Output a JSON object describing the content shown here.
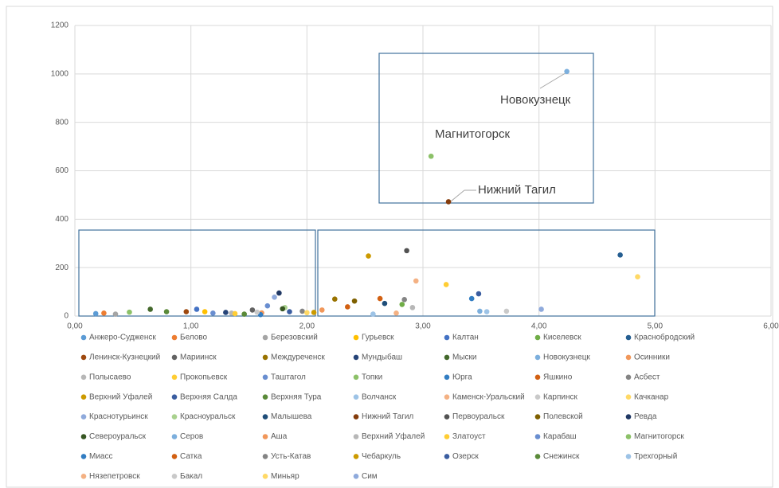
{
  "chart_data": {
    "type": "scatter",
    "xlim": [
      0,
      6
    ],
    "ylim": [
      0,
      1200
    ],
    "xticks": [
      {
        "value": 0,
        "label": "0,00"
      },
      {
        "value": 1,
        "label": "1,00"
      },
      {
        "value": 2,
        "label": "2,00"
      },
      {
        "value": 3,
        "label": "3,00"
      },
      {
        "value": 4,
        "label": "4,00"
      },
      {
        "value": 5,
        "label": "5,00"
      },
      {
        "value": 6,
        "label": "6,00"
      }
    ],
    "yticks": [
      0,
      200,
      400,
      600,
      800,
      1000,
      1200
    ],
    "grid": true,
    "legend": "bottom",
    "annotations": [
      {
        "text": "Новокузнецк"
      },
      {
        "text": "Магнитогорск"
      },
      {
        "text": "Нижний Тагил"
      }
    ],
    "series": [
      {
        "name": "Анжеро-Судженск",
        "color": "#5b9bd5",
        "x": [
          0.18
        ],
        "values": [
          10
        ]
      },
      {
        "name": "Белово",
        "color": "#ed7d31",
        "x": [
          0.25
        ],
        "values": [
          12
        ]
      },
      {
        "name": "Березовский",
        "color": "#a5a5a5",
        "x": [
          0.35
        ],
        "values": [
          8
        ]
      },
      {
        "name": "Гурьевск",
        "color": "#ffc000",
        "x": [
          1.12
        ],
        "values": [
          18
        ]
      },
      {
        "name": "Калтан",
        "color": "#4472c4",
        "x": [
          1.05
        ],
        "values": [
          28
        ]
      },
      {
        "name": "Киселевск",
        "color": "#70ad47",
        "x": [
          2.82
        ],
        "values": [
          48
        ]
      },
      {
        "name": "Краснобродский",
        "color": "#255e91",
        "x": [
          4.7
        ],
        "values": [
          252
        ]
      },
      {
        "name": "Ленинск-Кузнецкий",
        "color": "#9e480e",
        "x": [
          0.96
        ],
        "values": [
          18
        ]
      },
      {
        "name": "Мариинск",
        "color": "#636363",
        "x": [
          1.53
        ],
        "values": [
          25
        ]
      },
      {
        "name": "Междуреченск",
        "color": "#997300",
        "x": [
          2.24
        ],
        "values": [
          70
        ]
      },
      {
        "name": "Мундыбаш",
        "color": "#264478",
        "x": [
          1.3
        ],
        "values": [
          15
        ]
      },
      {
        "name": "Мыски",
        "color": "#43682b",
        "x": [
          0.65
        ],
        "values": [
          28
        ]
      },
      {
        "name": "Новокузнецк",
        "color": "#7cafdd",
        "x": [
          4.24
        ],
        "values": [
          1010
        ]
      },
      {
        "name": "Осинники",
        "color": "#f1975a",
        "x": [
          1.61
        ],
        "values": [
          13
        ]
      },
      {
        "name": "Полысаево",
        "color": "#b7b7b7",
        "x": [
          1.35
        ],
        "values": [
          12
        ]
      },
      {
        "name": "Прокопьевск",
        "color": "#ffcd33",
        "x": [
          1.38
        ],
        "values": [
          10
        ]
      },
      {
        "name": "Таштагол",
        "color": "#698ed0",
        "x": [
          1.66
        ],
        "values": [
          42
        ]
      },
      {
        "name": "Топки",
        "color": "#8cc168",
        "x": [
          0.47
        ],
        "values": [
          16
        ]
      },
      {
        "name": "Юрга",
        "color": "#327dc2",
        "x": [
          3.42
        ],
        "values": [
          72
        ]
      },
      {
        "name": "Яшкино",
        "color": "#d26012",
        "x": [
          2.63
        ],
        "values": [
          72
        ]
      },
      {
        "name": "Асбест",
        "color": "#848484",
        "x": [
          1.96
        ],
        "values": [
          20
        ]
      },
      {
        "name": "Верхний Уфалей",
        "color": "#cc9a00",
        "x": [
          2.53
        ],
        "values": [
          248
        ]
      },
      {
        "name": "Верхняя Салда",
        "color": "#3a5da0",
        "x": [
          3.48
        ],
        "values": [
          92
        ]
      },
      {
        "name": "Верхняя Тура",
        "color": "#5a8a39",
        "x": [
          0.79
        ],
        "values": [
          18
        ]
      },
      {
        "name": "Волчанск",
        "color": "#9dc3e6",
        "x": [
          2.57
        ],
        "values": [
          8
        ]
      },
      {
        "name": "Каменск-Уральский",
        "color": "#f4b183",
        "x": [
          2.94
        ],
        "values": [
          145
        ]
      },
      {
        "name": "Карпинск",
        "color": "#c9c9c9",
        "x": [
          3.72
        ],
        "values": [
          20
        ]
      },
      {
        "name": "Качканар",
        "color": "#ffd966",
        "x": [
          4.85
        ],
        "values": [
          162
        ]
      },
      {
        "name": "Краснотурьинск",
        "color": "#8faadc",
        "x": [
          1.72
        ],
        "values": [
          78
        ]
      },
      {
        "name": "Красноуральск",
        "color": "#a9d18e",
        "x": [
          1.81
        ],
        "values": [
          35
        ]
      },
      {
        "name": "Малышева",
        "color": "#1f4e79",
        "x": [
          2.67
        ],
        "values": [
          52
        ]
      },
      {
        "name": "Нижний Тагил",
        "color": "#843c0c",
        "x": [
          3.22
        ],
        "values": [
          472
        ]
      },
      {
        "name": "Первоуральск",
        "color": "#525252",
        "x": [
          2.86
        ],
        "values": [
          270
        ]
      },
      {
        "name": "Полевской",
        "color": "#7f6000",
        "x": [
          2.41
        ],
        "values": [
          62
        ]
      },
      {
        "name": "Ревда",
        "color": "#203864",
        "x": [
          1.76
        ],
        "values": [
          95
        ]
      },
      {
        "name": "Североуральск",
        "color": "#375623",
        "x": [
          1.79
        ],
        "values": [
          30
        ]
      },
      {
        "name": "Серов",
        "color": "#7cafdd",
        "x": [
          3.49
        ],
        "values": [
          20
        ]
      },
      {
        "name": "Аша",
        "color": "#f1975a",
        "x": [
          2.13
        ],
        "values": [
          25
        ]
      },
      {
        "name": "Верхний Уфалей",
        "color": "#b7b7b7",
        "x": [
          2.91
        ],
        "values": [
          35
        ]
      },
      {
        "name": "Златоуст",
        "color": "#ffcd33",
        "x": [
          3.2
        ],
        "values": [
          130
        ]
      },
      {
        "name": "Карабаш",
        "color": "#698ed0",
        "x": [
          1.19
        ],
        "values": [
          12
        ]
      },
      {
        "name": "Магнитогорск",
        "color": "#8cc168",
        "x": [
          3.07
        ],
        "values": [
          660
        ]
      },
      {
        "name": "Миасс",
        "color": "#327dc2",
        "x": [
          1.6
        ],
        "values": [
          6
        ]
      },
      {
        "name": "Сатка",
        "color": "#d26012",
        "x": [
          2.35
        ],
        "values": [
          38
        ]
      },
      {
        "name": "Усть-Катав",
        "color": "#848484",
        "x": [
          2.84
        ],
        "values": [
          68
        ]
      },
      {
        "name": "Чебаркуль",
        "color": "#cc9a00",
        "x": [
          2.06
        ],
        "values": [
          15
        ]
      },
      {
        "name": "Озерск",
        "color": "#3a5da0",
        "x": [
          1.85
        ],
        "values": [
          18
        ]
      },
      {
        "name": "Снежинск",
        "color": "#5a8a39",
        "x": [
          1.46
        ],
        "values": [
          8
        ]
      },
      {
        "name": "Трехгорный",
        "color": "#9dc3e6",
        "x": [
          3.55
        ],
        "values": [
          18
        ]
      },
      {
        "name": "Нязепетровск",
        "color": "#f4b183",
        "x": [
          2.77
        ],
        "values": [
          12
        ]
      },
      {
        "name": "Бакал",
        "color": "#c9c9c9",
        "x": [
          1.57
        ],
        "values": [
          16
        ]
      },
      {
        "name": "Миньяр",
        "color": "#ffd966",
        "x": [
          2.0
        ],
        "values": [
          14
        ]
      },
      {
        "name": "Сим",
        "color": "#8faadc",
        "x": [
          4.02
        ],
        "values": [
          28
        ]
      }
    ]
  }
}
